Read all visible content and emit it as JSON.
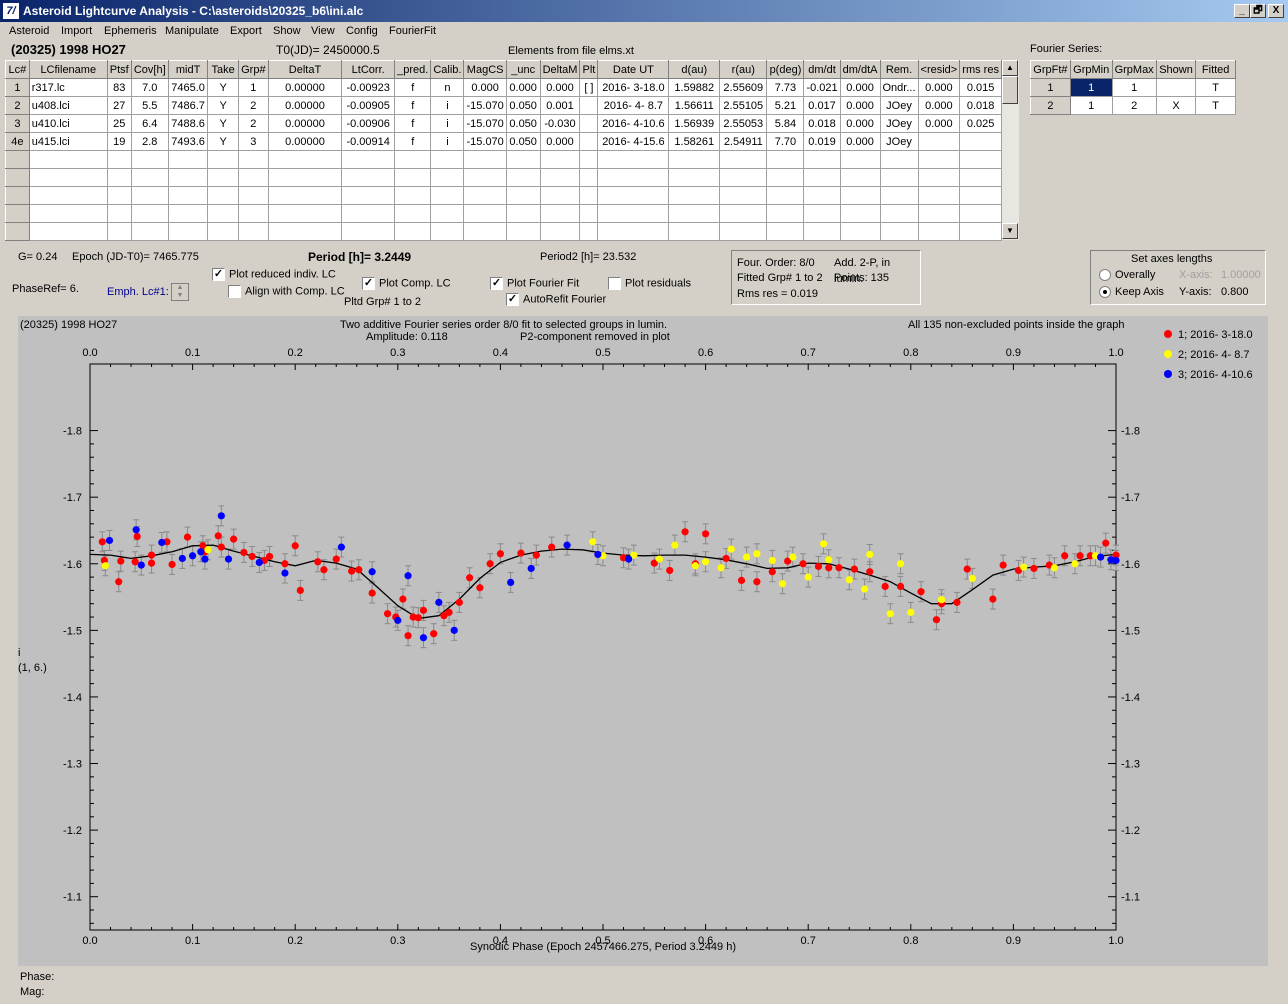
{
  "window": {
    "title": "Asteroid Lightcurve Analysis - C:\\asteroids\\20325_b6\\ini.alc",
    "app_icon": "7/",
    "min_label": "_",
    "restore_label": "🗗",
    "close_label": "X"
  },
  "menu": [
    "Asteroid",
    "Import",
    "Ephemeris",
    "Manipulate",
    "Export",
    "Show",
    "View",
    "Config",
    "FourierFit"
  ],
  "object_name": "(20325) 1998 HO27",
  "t0": "T0(JD)= 2450000.5",
  "elements_note": "Elements from file elms.xt",
  "lc_table": {
    "headers": [
      "Lc#",
      "LCfilename",
      "Ptsf",
      "Cov[h]",
      "midT",
      "Take",
      "Grp#",
      "DeltaT",
      "LtCorr.",
      "_pred.",
      "Calib.",
      "MagCS",
      "_unc",
      "DeltaM",
      "Plt",
      "Date UT",
      "d(au)",
      "r(au)",
      "p(deg)",
      "dm/dt",
      "dm/dtA",
      "Rem.",
      "<resid>",
      "rms res"
    ],
    "rows": [
      [
        "1",
        "r317.lc",
        "83",
        "7.0",
        "7465.0",
        "Y",
        "1",
        "0.00000",
        "-0.00923",
        "f",
        "n",
        "0.000",
        "0.000",
        "0.000",
        "[ ]",
        "2016- 3-18.0",
        "1.59882",
        "2.55609",
        "7.73",
        "-0.021",
        "0.000",
        "Ondr...",
        "0.000",
        "0.015"
      ],
      [
        "2",
        "u408.lci",
        "27",
        "5.5",
        "7486.7",
        "Y",
        "2",
        "0.00000",
        "-0.00905",
        "f",
        "i",
        "-15.070",
        "0.050",
        "0.001",
        "",
        "2016- 4- 8.7",
        "1.56611",
        "2.55105",
        "5.21",
        "0.017",
        "0.000",
        "JOey",
        "0.000",
        "0.018"
      ],
      [
        "3",
        "u410.lci",
        "25",
        "6.4",
        "7488.6",
        "Y",
        "2",
        "0.00000",
        "-0.00906",
        "f",
        "i",
        "-15.070",
        "0.050",
        "-0.030",
        "",
        "2016- 4-10.6",
        "1.56939",
        "2.55053",
        "5.84",
        "0.018",
        "0.000",
        "JOey",
        "0.000",
        "0.025"
      ],
      [
        "4e",
        "u415.lci",
        "19",
        "2.8",
        "7493.6",
        "Y",
        "3",
        "0.00000",
        "-0.00914",
        "f",
        "i",
        "-15.070",
        "0.050",
        "0.000",
        "",
        "2016- 4-15.6",
        "1.58261",
        "2.54911",
        "7.70",
        "0.019",
        "0.000",
        "JOey",
        "",
        ""
      ]
    ]
  },
  "fourier_table": {
    "title": "Fourier Series:",
    "headers": [
      "GrpFt#",
      "GrpMin",
      "GrpMax",
      "Shown",
      "Fitted"
    ],
    "rows": [
      [
        "1",
        "1",
        "1",
        "",
        "T"
      ],
      [
        "2",
        "1",
        "2",
        "X",
        "T"
      ]
    ]
  },
  "controls": {
    "g": "G= 0.24",
    "epoch": "Epoch (JD-T0)= 7465.775",
    "period": "Period [h]= 3.2449",
    "period2": "Period2 [h]= 23.532",
    "phaseref": "PhaseRef= 6.",
    "emph": "Emph. Lc#1:",
    "cb_plot_reduced": "Plot reduced indiv. LC",
    "cb_align": "Align with Comp. LC",
    "cb_plot_comp": "Plot Comp. LC",
    "pltd_grp": "Pltd Grp#  1   to   2",
    "cb_fourier_fit": "Plot Fourier Fit",
    "cb_autorefit": "AutoRefit Fourier",
    "cb_residuals": "Plot residuals"
  },
  "fit_info": {
    "order": "Four. Order:  8/0",
    "add": "Add. 2-P, in lumin.",
    "fitted": "Fitted Grp# 1 to 2",
    "points": "Points: 135",
    "rms": "Rms res     = 0.019"
  },
  "axes_box": {
    "title": "Set axes lengths",
    "overall": "Overally",
    "keep": "Keep Axis",
    "xaxis_label": "X-axis:",
    "xaxis_val": "1.00000",
    "yaxis_label": "Y-axis:",
    "yaxis_val": "0.800"
  },
  "plot_header": {
    "object": "(20325) 1998 HO27",
    "line1": "Two additive Fourier series order 8/0 fit to selected groups in lumin.",
    "line2a": "Amplitude: 0.118",
    "line2b": "P2-component removed in plot",
    "note": "All 135 non-excluded points inside the graph"
  },
  "status": {
    "phase": "Phase:",
    "mag": "Mag:"
  },
  "chart_data": {
    "type": "scatter",
    "xlabel": "Synodic Phase (Epoch 2457466.275, Period 3.2449 h)",
    "ylabel": "i\n(1, 6.)",
    "xlim": [
      0,
      1
    ],
    "ylim": [
      -1.9,
      -1.05
    ],
    "y_inverted": true,
    "xticks": [
      "0.0",
      "0.1",
      "0.2",
      "0.3",
      "0.4",
      "0.5",
      "0.6",
      "0.7",
      "0.8",
      "0.9",
      "1.0"
    ],
    "yticks": [
      "-1.8",
      "-1.7",
      "-1.6",
      "-1.5",
      "-1.4",
      "-1.3",
      "-1.2",
      "-1.1"
    ],
    "legend_position": "right-outside",
    "series": [
      {
        "name": "1; 2016- 3-18.0",
        "color": "#ff0000",
        "points": [
          [
            0.012,
            -1.633
          ],
          [
            0.014,
            -1.605
          ],
          [
            0.028,
            -1.573
          ],
          [
            0.03,
            -1.604
          ],
          [
            0.044,
            -1.603
          ],
          [
            0.046,
            -1.641
          ],
          [
            0.06,
            -1.601
          ],
          [
            0.06,
            -1.613
          ],
          [
            0.075,
            -1.633
          ],
          [
            0.08,
            -1.599
          ],
          [
            0.095,
            -1.64
          ],
          [
            0.11,
            -1.627
          ],
          [
            0.112,
            -1.618
          ],
          [
            0.125,
            -1.642
          ],
          [
            0.128,
            -1.625
          ],
          [
            0.14,
            -1.637
          ],
          [
            0.15,
            -1.617
          ],
          [
            0.158,
            -1.611
          ],
          [
            0.17,
            -1.605
          ],
          [
            0.175,
            -1.611
          ],
          [
            0.19,
            -1.6
          ],
          [
            0.2,
            -1.627
          ],
          [
            0.205,
            -1.56
          ],
          [
            0.222,
            -1.603
          ],
          [
            0.228,
            -1.591
          ],
          [
            0.24,
            -1.607
          ],
          [
            0.255,
            -1.589
          ],
          [
            0.262,
            -1.591
          ],
          [
            0.275,
            -1.556
          ],
          [
            0.29,
            -1.525
          ],
          [
            0.298,
            -1.52
          ],
          [
            0.305,
            -1.547
          ],
          [
            0.31,
            -1.492
          ],
          [
            0.315,
            -1.52
          ],
          [
            0.32,
            -1.519
          ],
          [
            0.325,
            -1.53
          ],
          [
            0.335,
            -1.495
          ],
          [
            0.345,
            -1.522
          ],
          [
            0.35,
            -1.527
          ],
          [
            0.36,
            -1.542
          ],
          [
            0.37,
            -1.579
          ],
          [
            0.38,
            -1.564
          ],
          [
            0.39,
            -1.6
          ],
          [
            0.4,
            -1.615
          ],
          [
            0.42,
            -1.616
          ],
          [
            0.435,
            -1.613
          ],
          [
            0.45,
            -1.625
          ],
          [
            0.52,
            -1.609
          ],
          [
            0.55,
            -1.601
          ],
          [
            0.565,
            -1.59
          ],
          [
            0.58,
            -1.648
          ],
          [
            0.59,
            -1.6
          ],
          [
            0.6,
            -1.645
          ],
          [
            0.62,
            -1.608
          ],
          [
            0.635,
            -1.575
          ],
          [
            0.65,
            -1.573
          ],
          [
            0.665,
            -1.588
          ],
          [
            0.68,
            -1.604
          ],
          [
            0.695,
            -1.6
          ],
          [
            0.71,
            -1.596
          ],
          [
            0.72,
            -1.594
          ],
          [
            0.73,
            -1.594
          ],
          [
            0.745,
            -1.592
          ],
          [
            0.76,
            -1.588
          ],
          [
            0.775,
            -1.566
          ],
          [
            0.79,
            -1.566
          ],
          [
            0.81,
            -1.558
          ],
          [
            0.825,
            -1.516
          ],
          [
            0.83,
            -1.54
          ],
          [
            0.845,
            -1.542
          ],
          [
            0.855,
            -1.592
          ],
          [
            0.88,
            -1.547
          ],
          [
            0.89,
            -1.598
          ],
          [
            0.905,
            -1.59
          ],
          [
            0.92,
            -1.593
          ],
          [
            0.935,
            -1.598
          ],
          [
            0.95,
            -1.612
          ],
          [
            0.965,
            -1.612
          ],
          [
            0.975,
            -1.612
          ],
          [
            0.99,
            -1.631
          ],
          [
            1.0,
            -1.613
          ]
        ]
      },
      {
        "name": "2; 2016- 4- 8.7",
        "color": "#ffff00",
        "points": [
          [
            0.015,
            -1.597
          ],
          [
            0.115,
            -1.621
          ],
          [
            0.49,
            -1.633
          ],
          [
            0.5,
            -1.612
          ],
          [
            0.53,
            -1.613
          ],
          [
            0.555,
            -1.607
          ],
          [
            0.57,
            -1.628
          ],
          [
            0.59,
            -1.597
          ],
          [
            0.6,
            -1.603
          ],
          [
            0.615,
            -1.594
          ],
          [
            0.625,
            -1.622
          ],
          [
            0.64,
            -1.61
          ],
          [
            0.65,
            -1.615
          ],
          [
            0.665,
            -1.605
          ],
          [
            0.675,
            -1.57
          ],
          [
            0.685,
            -1.61
          ],
          [
            0.7,
            -1.58
          ],
          [
            0.715,
            -1.63
          ],
          [
            0.72,
            -1.606
          ],
          [
            0.74,
            -1.576
          ],
          [
            0.755,
            -1.562
          ],
          [
            0.76,
            -1.614
          ],
          [
            0.78,
            -1.525
          ],
          [
            0.79,
            -1.6
          ],
          [
            0.8,
            -1.527
          ],
          [
            0.83,
            -1.546
          ],
          [
            0.86,
            -1.578
          ],
          [
            0.91,
            -1.595
          ],
          [
            0.94,
            -1.594
          ],
          [
            0.96,
            -1.6
          ],
          [
            0.98,
            -1.612
          ]
        ]
      },
      {
        "name": "3; 2016- 4-10.6",
        "color": "#0000ff",
        "points": [
          [
            0.019,
            -1.635
          ],
          [
            0.045,
            -1.651
          ],
          [
            0.05,
            -1.598
          ],
          [
            0.07,
            -1.632
          ],
          [
            0.09,
            -1.608
          ],
          [
            0.1,
            -1.612
          ],
          [
            0.108,
            -1.618
          ],
          [
            0.112,
            -1.607
          ],
          [
            0.128,
            -1.672
          ],
          [
            0.135,
            -1.607
          ],
          [
            0.165,
            -1.602
          ],
          [
            0.19,
            -1.586
          ],
          [
            0.245,
            -1.625
          ],
          [
            0.275,
            -1.588
          ],
          [
            0.3,
            -1.515
          ],
          [
            0.31,
            -1.582
          ],
          [
            0.325,
            -1.489
          ],
          [
            0.34,
            -1.542
          ],
          [
            0.355,
            -1.5
          ],
          [
            0.41,
            -1.572
          ],
          [
            0.43,
            -1.593
          ],
          [
            0.465,
            -1.628
          ],
          [
            0.495,
            -1.614
          ],
          [
            0.525,
            -1.607
          ],
          [
            0.985,
            -1.61
          ],
          [
            0.995,
            -1.606
          ],
          [
            1.0,
            -1.605
          ]
        ]
      }
    ],
    "fit_curve": [
      [
        0,
        -1.614
      ],
      [
        0.02,
        -1.613
      ],
      [
        0.04,
        -1.608
      ],
      [
        0.06,
        -1.612
      ],
      [
        0.08,
        -1.618
      ],
      [
        0.1,
        -1.627
      ],
      [
        0.12,
        -1.628
      ],
      [
        0.14,
        -1.619
      ],
      [
        0.16,
        -1.611
      ],
      [
        0.18,
        -1.603
      ],
      [
        0.2,
        -1.597
      ],
      [
        0.22,
        -1.605
      ],
      [
        0.24,
        -1.601
      ],
      [
        0.26,
        -1.592
      ],
      [
        0.28,
        -1.565
      ],
      [
        0.3,
        -1.537
      ],
      [
        0.32,
        -1.518
      ],
      [
        0.34,
        -1.522
      ],
      [
        0.36,
        -1.547
      ],
      [
        0.38,
        -1.578
      ],
      [
        0.4,
        -1.602
      ],
      [
        0.42,
        -1.613
      ],
      [
        0.44,
        -1.619
      ],
      [
        0.46,
        -1.622
      ],
      [
        0.48,
        -1.621
      ],
      [
        0.5,
        -1.616
      ],
      [
        0.52,
        -1.613
      ],
      [
        0.54,
        -1.612
      ],
      [
        0.56,
        -1.613
      ],
      [
        0.58,
        -1.613
      ],
      [
        0.6,
        -1.61
      ],
      [
        0.62,
        -1.606
      ],
      [
        0.64,
        -1.6
      ],
      [
        0.66,
        -1.593
      ],
      [
        0.68,
        -1.594
      ],
      [
        0.7,
        -1.601
      ],
      [
        0.72,
        -1.6
      ],
      [
        0.74,
        -1.592
      ],
      [
        0.76,
        -1.583
      ],
      [
        0.78,
        -1.573
      ],
      [
        0.8,
        -1.556
      ],
      [
        0.82,
        -1.54
      ],
      [
        0.84,
        -1.54
      ],
      [
        0.86,
        -1.561
      ],
      [
        0.88,
        -1.583
      ],
      [
        0.9,
        -1.592
      ],
      [
        0.92,
        -1.595
      ],
      [
        0.94,
        -1.597
      ],
      [
        0.96,
        -1.603
      ],
      [
        0.98,
        -1.611
      ],
      [
        1.0,
        -1.614
      ]
    ]
  }
}
